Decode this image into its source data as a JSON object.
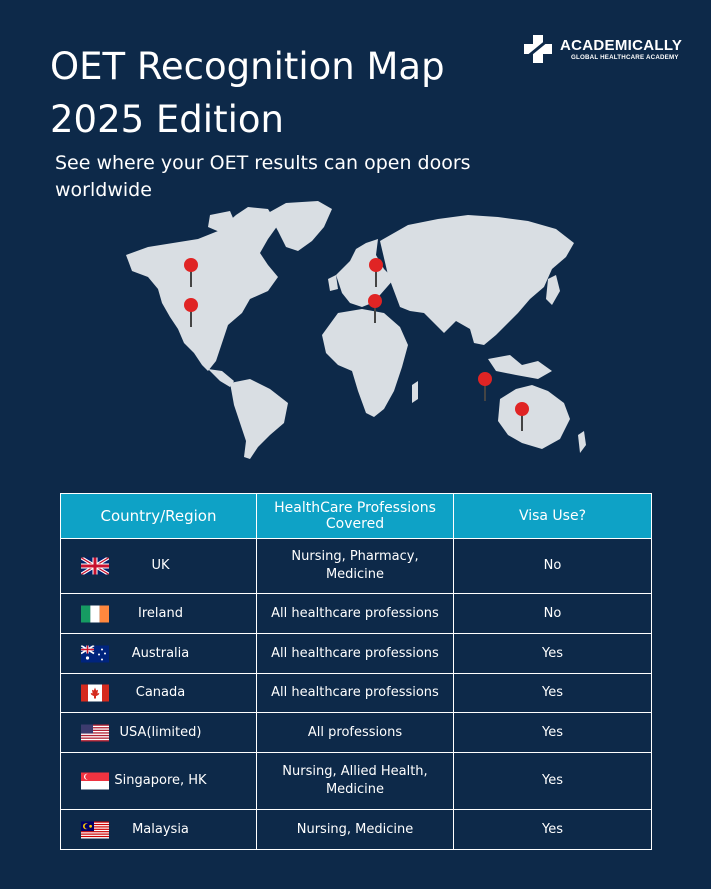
{
  "header": {
    "title_line1": "OET Recognition Map",
    "title_line2": "2025 Edition",
    "subtitle": "See where your OET results can open doors worldwide"
  },
  "brand": {
    "name": "ACADEMICALLY",
    "tagline": "GLOBAL HEALTHCARE ACADEMY"
  },
  "colors": {
    "background": "#0d2949",
    "header_cell": "#0ea2c6",
    "map_land": "#d9dee3",
    "pin": "#e02424"
  },
  "table": {
    "headers": [
      "Country/Region",
      "HealthCare Professions Covered",
      "Visa Use?"
    ],
    "rows": [
      {
        "country": "UK",
        "flag": "uk-flag-icon",
        "professions": "Nursing, Pharmacy, Medicine",
        "visa": "No"
      },
      {
        "country": "Ireland",
        "flag": "ireland-flag-icon",
        "professions": "All healthcare professions",
        "visa": "No"
      },
      {
        "country": "Australia",
        "flag": "australia-flag-icon",
        "professions": "All healthcare professions",
        "visa": "Yes"
      },
      {
        "country": "Canada",
        "flag": "canada-flag-icon",
        "professions": "All healthcare professions",
        "visa": "Yes"
      },
      {
        "country": "USA(limited)",
        "flag": "usa-flag-icon",
        "professions": "All professions",
        "visa": "Yes"
      },
      {
        "country": "Singapore, HK",
        "flag": "singapore-flag-icon",
        "professions": "Nursing, Allied Health, Medicine",
        "visa": "Yes"
      },
      {
        "country": "Malaysia",
        "flag": "malaysia-flag-icon",
        "professions": "Nursing, Medicine",
        "visa": "Yes"
      }
    ]
  }
}
